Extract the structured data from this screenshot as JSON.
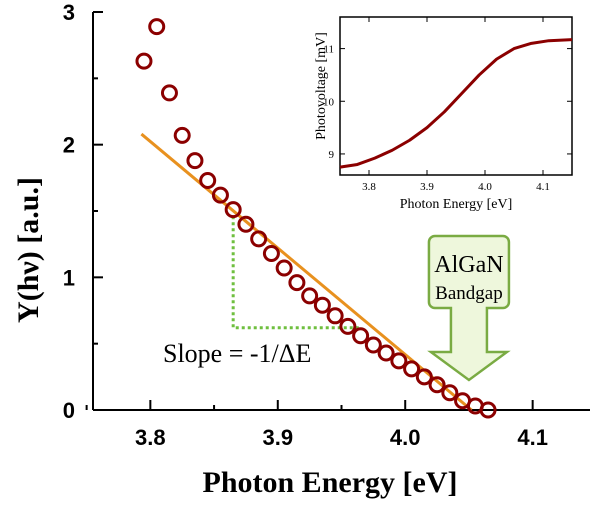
{
  "chart_data": [
    {
      "type": "scatter",
      "title": "",
      "xlabel": "Photon Energy [eV]",
      "ylabel": "Y(hν) [a.u.]",
      "xlim": [
        3.755,
        4.145
      ],
      "ylim": [
        0,
        3
      ],
      "xticks": [
        "3.8",
        "3.9",
        "4.0",
        "4.1"
      ],
      "yticks": [
        "0",
        "1",
        "2",
        "3"
      ],
      "series": [
        {
          "type": "scatter",
          "color": "#8b0000",
          "marker": "open-circle",
          "x": [
            3.795,
            3.805,
            3.815,
            3.825,
            3.835,
            3.845,
            3.855,
            3.865,
            3.875,
            3.885,
            3.895,
            3.905,
            3.915,
            3.925,
            3.935,
            3.945,
            3.955,
            3.965,
            3.975,
            3.985,
            3.995,
            4.005,
            4.015,
            4.025,
            4.035,
            4.045,
            4.055,
            4.065
          ],
          "y": [
            2.63,
            2.89,
            2.39,
            2.07,
            1.88,
            1.73,
            1.62,
            1.51,
            1.4,
            1.29,
            1.18,
            1.07,
            0.96,
            0.86,
            0.79,
            0.71,
            0.63,
            0.56,
            0.49,
            0.43,
            0.37,
            0.31,
            0.25,
            0.19,
            0.13,
            0.07,
            0.03,
            0.0
          ]
        },
        {
          "type": "line",
          "color": "#e8911f",
          "x": [
            3.793,
            4.052
          ],
          "y": [
            2.08,
            0.0
          ]
        }
      ],
      "annotations": {
        "slope_label": "Slope = -1/ΔE",
        "slope_triangle": {
          "color": "#6fbf3f",
          "x": [
            3.865,
            3.965
          ],
          "y": [
            1.46,
            0.62
          ]
        },
        "callout": {
          "line1": "AlGaN",
          "line2": "Bandgap",
          "fill": "#eef7dc",
          "stroke": "#7aab43",
          "x": 4.05
        }
      }
    },
    {
      "type": "line",
      "title": "",
      "xlabel": "Photon Energy [eV]",
      "ylabel": "Photovoltage [mV]",
      "xlim": [
        3.75,
        4.15
      ],
      "ylim": [
        8.6,
        11.6
      ],
      "xticks": [
        "3.8",
        "3.9",
        "4.0",
        "4.1"
      ],
      "yticks": [
        "9",
        "10",
        "11"
      ],
      "series": [
        {
          "color": "#8b0000",
          "x": [
            3.75,
            3.78,
            3.81,
            3.84,
            3.87,
            3.9,
            3.93,
            3.96,
            3.99,
            4.02,
            4.05,
            4.08,
            4.11,
            4.15
          ],
          "y": [
            8.75,
            8.8,
            8.92,
            9.07,
            9.26,
            9.5,
            9.8,
            10.15,
            10.5,
            10.8,
            11.0,
            11.1,
            11.15,
            11.17
          ]
        }
      ]
    }
  ]
}
